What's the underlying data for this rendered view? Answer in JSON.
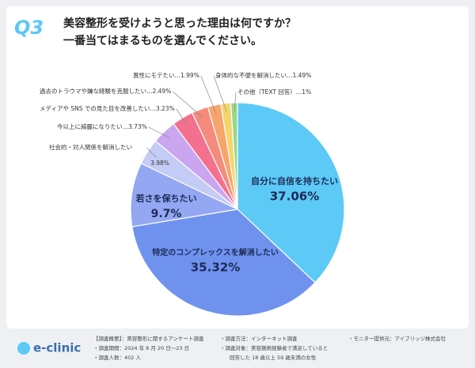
{
  "header": {
    "number": "Q3",
    "title_lines": [
      "美容整形を受けようと思った理由は何ですか？",
      "一番当てはまるものを選んでください。"
    ]
  },
  "chart_data": {
    "type": "pie",
    "categories": [
      "自分に自信を持ちたい",
      "特定のコンプレックスを解消したい",
      "若さを保ちたい",
      "社会的・対人関係を解消したい",
      "今以上に綺麗になりたい",
      "メディアや SNS での見た目を改善したい",
      "過去のトラウマや嫌な経験を克服したい",
      "異性にモテたい",
      "身体的な不便を解消したい",
      "その他（TEXT 回答）"
    ],
    "values": [
      37.06,
      35.32,
      9.7,
      3.98,
      3.73,
      3.23,
      2.49,
      1.99,
      1.49,
      1
    ],
    "value_labels": [
      "37.06%",
      "35.32%",
      "9.7%",
      "3.98%",
      "3.73%",
      "3.23%",
      "2.49%",
      "1.99%",
      "1.49%",
      "1%"
    ],
    "label_separator": "…",
    "colors": [
      "#5cc9f6",
      "#6f92ef",
      "#93a7f2",
      "#c3cbf6",
      "#c9a6ef",
      "#f4708f",
      "#f58b7c",
      "#f6a56c",
      "#f5d56b",
      "#96d88c"
    ]
  },
  "footer": {
    "logo": "e-clinic",
    "lines": [
      "【調査概要】：美容整形に関するアンケート調査",
      "・調査期間：2024 年 8 月 20 日〜23 日",
      "・調査人数：402 人",
      "・調査方法：インターネット調査",
      "・調査対象：美容施術経験者で満足していると",
      "回答した 18 歳以上 59 歳未満の女性",
      "・モニター提供元：アイブリッジ株式会社"
    ]
  }
}
